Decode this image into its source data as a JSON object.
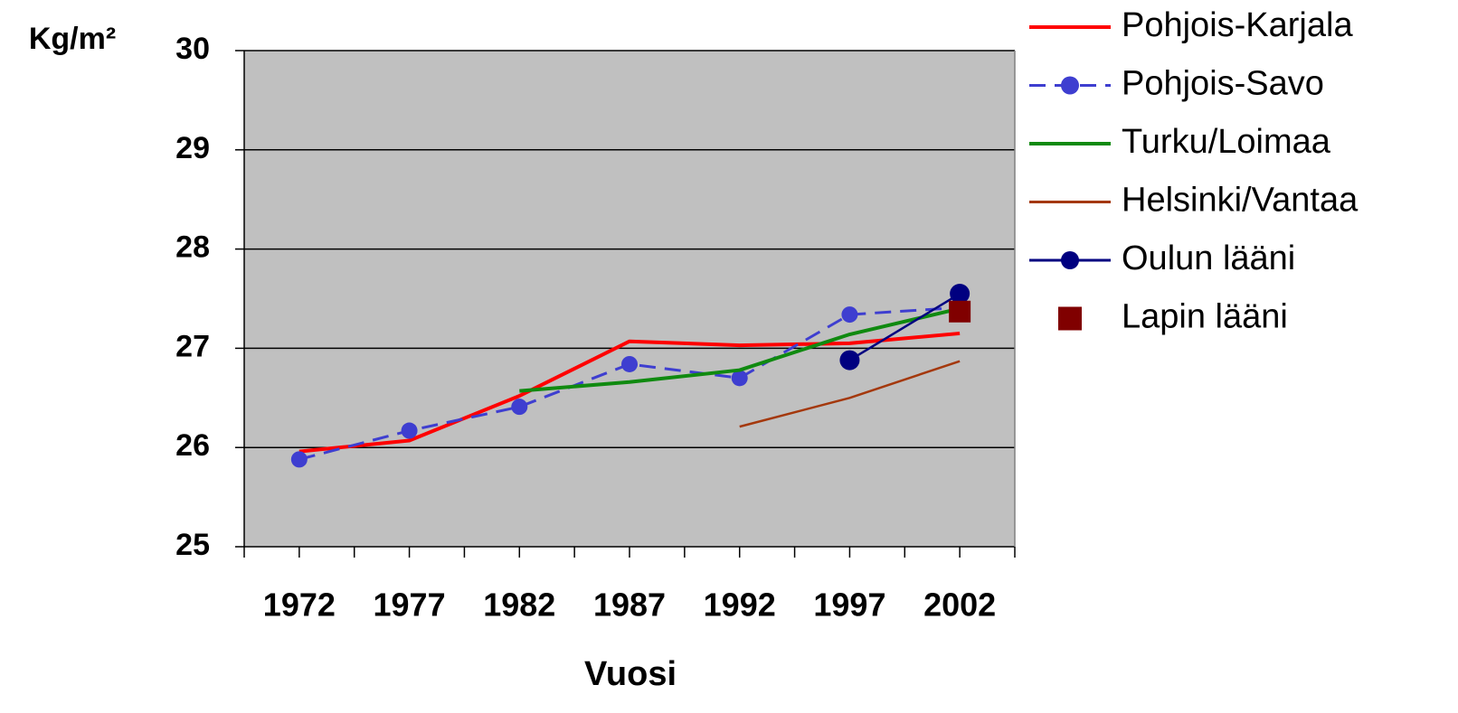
{
  "chart_data": {
    "type": "line",
    "y_label": "Kg/m²",
    "x_label": "Vuosi",
    "categories": [
      "1972",
      "1977",
      "1982",
      "1987",
      "1992",
      "1997",
      "2002"
    ],
    "series": [
      {
        "name": "Pohjois-Karjala",
        "color": "#ff0000",
        "width": 4,
        "dash": false,
        "marker": null,
        "line": true,
        "values": [
          25.96,
          26.07,
          26.52,
          27.07,
          27.03,
          27.05,
          27.15
        ]
      },
      {
        "name": "Pohjois-Savo",
        "color": "#3e3ed0",
        "width": 3,
        "dash": true,
        "marker": "circle",
        "line": true,
        "values": [
          25.88,
          26.17,
          26.41,
          26.84,
          26.7,
          27.34,
          27.41
        ]
      },
      {
        "name": "Turku/Loimaa",
        "color": "#108a10",
        "width": 4,
        "dash": false,
        "marker": null,
        "line": true,
        "values": [
          null,
          null,
          26.57,
          26.66,
          26.78,
          27.14,
          27.4
        ]
      },
      {
        "name": "Helsinki/Vantaa",
        "color": "#a4380c",
        "width": 2.5,
        "dash": false,
        "marker": null,
        "line": true,
        "values": [
          null,
          null,
          null,
          null,
          26.21,
          26.5,
          26.87
        ]
      },
      {
        "name": "Oulun lääni",
        "color": "#000080",
        "width": 2.5,
        "dash": false,
        "marker": "circle",
        "line": true,
        "values": [
          null,
          null,
          null,
          null,
          null,
          26.88,
          27.55
        ]
      },
      {
        "name": "Lapin lääni",
        "color": "#800000",
        "width": 0,
        "dash": false,
        "marker": "square",
        "line": false,
        "values": [
          null,
          null,
          null,
          null,
          null,
          null,
          27.37
        ]
      }
    ],
    "ylim": [
      25,
      30
    ],
    "yticks": [
      25,
      26,
      27,
      28,
      29,
      30
    ],
    "grid": true
  }
}
